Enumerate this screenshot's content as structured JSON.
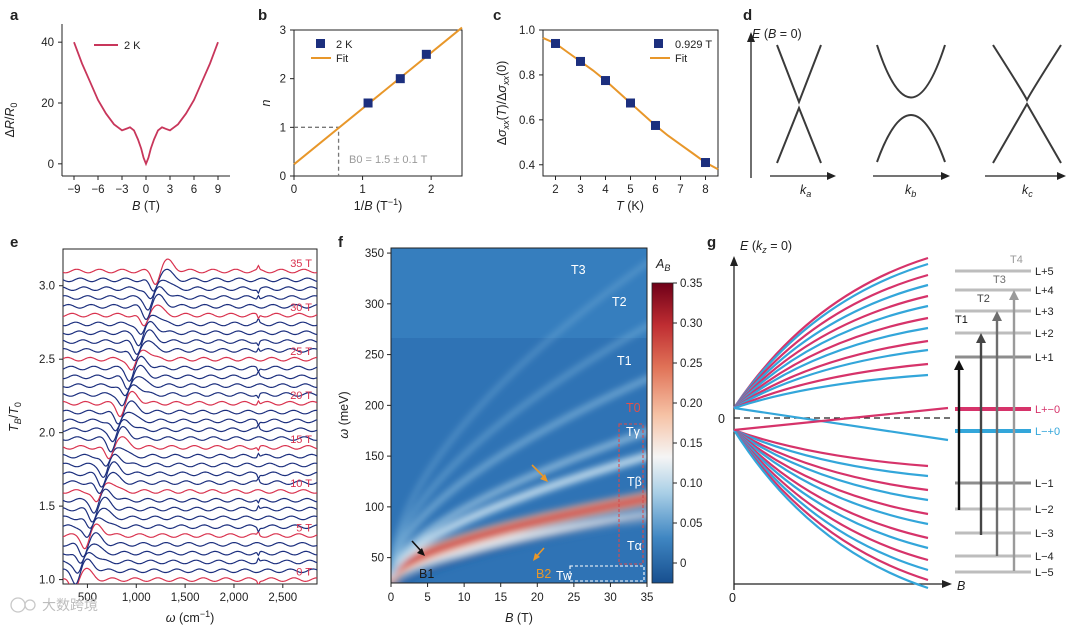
{
  "panel_letters": [
    "a",
    "b",
    "c",
    "d",
    "e",
    "f",
    "g"
  ],
  "watermark": "大数跨境",
  "colors": {
    "crimson": "#c8365b",
    "navy": "#1c2f7e",
    "orange": "#e8972a",
    "blue": "#33a6da",
    "gray": "#9a9a9a"
  },
  "chart_data": [
    {
      "id": "a",
      "type": "line",
      "xlabel": "B (T)",
      "ylabel": "ΔR/R0",
      "xticks": [
        "−9",
        "−6",
        "−3",
        "0",
        "3",
        "6",
        "9"
      ],
      "yticks": [
        "0",
        "20",
        "40"
      ],
      "xlim": [
        -10.5,
        10.5
      ],
      "ylim": [
        -4,
        44
      ],
      "legend": [
        "2 K"
      ],
      "x": [
        -9,
        -8,
        -7,
        -6,
        -5,
        -4,
        -3,
        -2.5,
        -2,
        -1.5,
        -1,
        -0.6,
        -0.3,
        0,
        0.3,
        0.6,
        1,
        1.5,
        2,
        2.5,
        3,
        4,
        5,
        6,
        7,
        8,
        9
      ],
      "y": [
        40,
        33,
        27,
        21,
        16.5,
        13,
        11,
        11.5,
        12,
        11,
        8,
        5,
        2,
        0,
        2,
        5,
        8,
        11,
        12,
        11.5,
        11,
        13,
        16.5,
        21,
        27,
        33,
        40
      ]
    },
    {
      "id": "b",
      "type": "scatter",
      "xlabel": "1/B (T−1)",
      "ylabel": "n",
      "xticks": [
        "0",
        "1",
        "2"
      ],
      "yticks": [
        "0",
        "1",
        "2",
        "3"
      ],
      "xlim": [
        0,
        2.45
      ],
      "ylim": [
        0,
        3
      ],
      "legend": [
        "2 K",
        "Fit"
      ],
      "points_x": [
        1.08,
        1.55,
        1.93
      ],
      "points_y": [
        1.5,
        2.0,
        2.5
      ],
      "fit_x": [
        0,
        2.45
      ],
      "fit_y": [
        0.24,
        3.05
      ],
      "annotation": "B0 = 1.5 ± 0.1 T",
      "guide_x": 0.65,
      "guide_y": 1
    },
    {
      "id": "c",
      "type": "scatter",
      "xlabel": "T (K)",
      "ylabel": "Δσxx(T)/Δσxx(0)",
      "xticks": [
        "2",
        "3",
        "4",
        "5",
        "6",
        "7",
        "8"
      ],
      "yticks": [
        "0.4",
        "0.6",
        "0.8",
        "1.0"
      ],
      "xlim": [
        1.5,
        8.5
      ],
      "ylim": [
        0.35,
        1.0
      ],
      "legend": [
        "0.929 T",
        "Fit"
      ],
      "points_x": [
        2,
        3,
        4,
        5,
        6,
        8
      ],
      "points_y": [
        0.94,
        0.86,
        0.775,
        0.675,
        0.575,
        0.41
      ],
      "fit_x": [
        1.5,
        2,
        2.5,
        3,
        3.5,
        4,
        4.5,
        5,
        5.5,
        6,
        6.5,
        7,
        7.5,
        8,
        8.5
      ],
      "fit_y": [
        0.965,
        0.94,
        0.9,
        0.86,
        0.82,
        0.775,
        0.725,
        0.675,
        0.625,
        0.575,
        0.53,
        0.49,
        0.45,
        0.41,
        0.38
      ]
    },
    {
      "id": "e",
      "type": "line",
      "xlabel": "ω (cm−1)",
      "ylabel": "TB/T0",
      "xticks": [
        "500",
        "1,000",
        "1,500",
        "2,000",
        "2,500"
      ],
      "yticks": [
        "1.0",
        "1.5",
        "2.0",
        "2.5",
        "3.0"
      ],
      "xlim": [
        250,
        2850
      ],
      "ylim": [
        0.97,
        3.25
      ],
      "field_labels": [
        "0 T",
        "5 T",
        "10 T",
        "15 T",
        "20 T",
        "25 T",
        "30 T",
        "35 T"
      ],
      "curve_count": 36,
      "offset_per_tesla": 0.06
    },
    {
      "id": "f",
      "type": "heatmap",
      "xlabel": "B (T)",
      "ylabel": "ω (meV)",
      "xticks": [
        "0",
        "5",
        "10",
        "15",
        "20",
        "25",
        "30",
        "35"
      ],
      "yticks": [
        "50",
        "100",
        "150",
        "200",
        "250",
        "300",
        "350"
      ],
      "xlim": [
        0,
        35
      ],
      "ylim": [
        25,
        355
      ],
      "colorbar_title": "AB",
      "colorbar_ticks": [
        "0",
        "0.05",
        "0.10",
        "0.15",
        "0.20",
        "0.25",
        "0.30",
        "0.35"
      ],
      "labels": [
        "T3",
        "T2",
        "T1",
        "T0",
        "Tγ",
        "Tβ",
        "Tα",
        "B1",
        "B2",
        "Tw"
      ]
    },
    {
      "id": "g",
      "type": "line",
      "ylabel": "E (kz = 0)",
      "xlabel": "B",
      "origin": "0",
      "zero_label": "0",
      "level_labels": [
        "L+5",
        "L+4",
        "L+3",
        "L+2",
        "L+1",
        "L−1",
        "L−2",
        "L−3",
        "L−4",
        "L−5"
      ],
      "special_labels": [
        "L+−0",
        "L−+0"
      ],
      "transitions": [
        "T1",
        "T2",
        "T3",
        "T4"
      ]
    }
  ],
  "panel_d": {
    "ylabel": "E (B = 0)",
    "k_labels": [
      "ka",
      "kb",
      "kc"
    ]
  }
}
